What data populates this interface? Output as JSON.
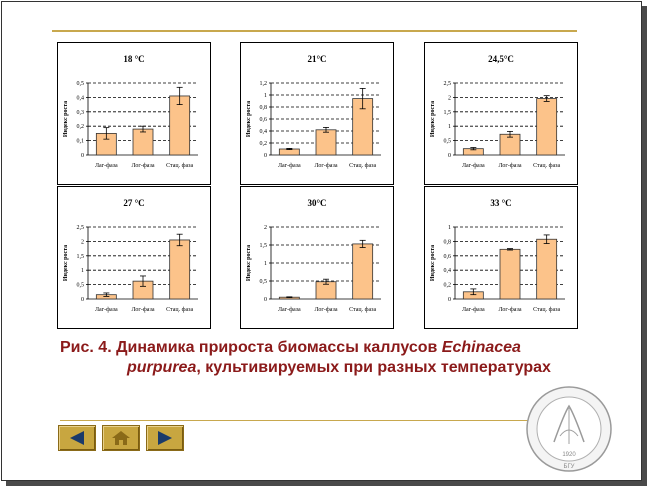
{
  "panels": [
    {
      "title": "18 °C",
      "ylabel": "Индекс роста"
    },
    {
      "title": "21°C",
      "ylabel": "Индекс роста"
    },
    {
      "title": "24,5°C",
      "ylabel": "Индекс роста"
    },
    {
      "title": "27 °C",
      "ylabel": "Индекс роста"
    },
    {
      "title": "30°C",
      "ylabel": "Индекс роста"
    },
    {
      "title": "33 °C",
      "ylabel": "Индекс роста"
    }
  ],
  "caption": {
    "line1_a": "Рис. 4.  Динамика прироста биомассы каллусов ",
    "line1_italic": "Echinacea",
    "line2_italic": "purpurea",
    "line2_b": ", культивируемых при разных температурах"
  },
  "nav": {
    "back": "back-arrow-icon",
    "home": "home-icon",
    "forward": "forward-arrow-icon"
  },
  "emblem": {
    "year": "1920",
    "initials": "БГУ"
  },
  "colors": {
    "bar": "#fcc38a",
    "bar_stroke": "#333333",
    "caption": "#8b1a1a",
    "accent": "#c8a84e"
  },
  "chart_data": [
    {
      "type": "bar",
      "title": "18 °C",
      "ylabel": "Индекс роста",
      "categories": [
        "Лаг-фаза",
        "Лог-фаза",
        "Стац. фаза"
      ],
      "values": [
        0.15,
        0.18,
        0.41
      ],
      "errors": [
        0.04,
        0.02,
        0.06
      ],
      "ylim": [
        0,
        0.5
      ],
      "yticks": [
        "0",
        "0,1",
        "0,2",
        "0,3",
        "0,4",
        "0,5"
      ],
      "grid": true
    },
    {
      "type": "bar",
      "title": "21°C",
      "ylabel": "Индекс роста",
      "categories": [
        "Лаг-фаза",
        "Лог-фаза",
        "Стац. фаза"
      ],
      "values": [
        0.1,
        0.42,
        0.94
      ],
      "errors": [
        0.01,
        0.04,
        0.17
      ],
      "ylim": [
        0,
        1.2
      ],
      "yticks": [
        "0",
        "0,2",
        "0,4",
        "0,6",
        "0,8",
        "1",
        "1,2"
      ],
      "grid": true
    },
    {
      "type": "bar",
      "title": "24,5°C",
      "ylabel": "Индекс роста",
      "categories": [
        "Лаг-фаза",
        "Лог-фаза",
        "Стац. фаза"
      ],
      "values": [
        0.22,
        0.72,
        1.96
      ],
      "errors": [
        0.04,
        0.1,
        0.1
      ],
      "ylim": [
        0,
        2.5
      ],
      "yticks": [
        "0",
        "0,5",
        "1",
        "1,5",
        "2",
        "2,5"
      ],
      "grid": true
    },
    {
      "type": "bar",
      "title": "27 °C",
      "ylabel": "Индекс роста",
      "categories": [
        "Лаг-фаза",
        "Лог-фаза",
        "Стац. фаза"
      ],
      "values": [
        0.15,
        0.62,
        2.05
      ],
      "errors": [
        0.06,
        0.18,
        0.2
      ],
      "ylim": [
        0,
        2.5
      ],
      "yticks": [
        "0",
        "0,5",
        "1",
        "1,5",
        "2",
        "2,5"
      ],
      "grid": true
    },
    {
      "type": "bar",
      "title": "30°C",
      "ylabel": "Индекс роста",
      "categories": [
        "Лаг-фаза",
        "Лог-фаза",
        "Стац. фаза"
      ],
      "values": [
        0.05,
        0.48,
        1.53
      ],
      "errors": [
        0.01,
        0.07,
        0.1
      ],
      "ylim": [
        0,
        2
      ],
      "yticks": [
        "0",
        "0,5",
        "1",
        "1,5",
        "2"
      ],
      "grid": true
    },
    {
      "type": "bar",
      "title": "33 °C",
      "ylabel": "Индекс роста",
      "categories": [
        "Лаг-фаза",
        "Лог-фаза",
        "Стац. фаза"
      ],
      "values": [
        0.1,
        0.69,
        0.83
      ],
      "errors": [
        0.04,
        0.01,
        0.06
      ],
      "ylim": [
        0,
        1
      ],
      "yticks": [
        "0",
        "0,2",
        "0,4",
        "0,6",
        "0,8",
        "1"
      ],
      "grid": true
    }
  ]
}
